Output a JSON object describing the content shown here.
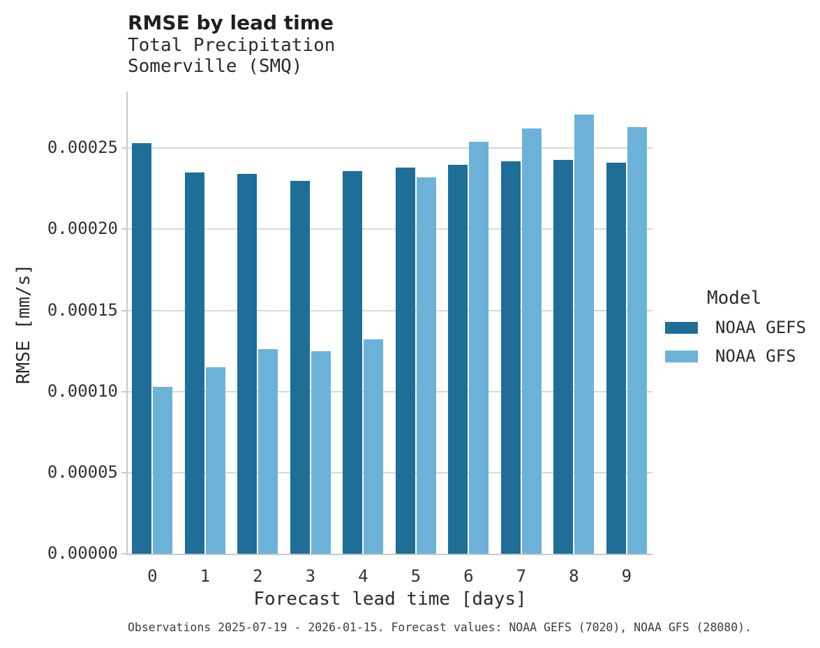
{
  "title": "RMSE by lead time",
  "subtitle": [
    "Total Precipitation",
    "Somerville (SMQ)"
  ],
  "caption": "Observations 2025-07-19 - 2026-01-15. Forecast values: NOAA GEFS (7020), NOAA GFS (28080).",
  "colors": {
    "gefs": "#1e6e98",
    "gfs": "#6cb2d8",
    "gridline": "#d9d9d9",
    "axis": "#c9c9c9",
    "text": "#2b2b2b",
    "tick_text": "#333333",
    "caption_text": "#3d3d3d"
  },
  "chart_data": {
    "type": "bar",
    "title": "RMSE by lead time",
    "subtitle": [
      "Total Precipitation",
      "Somerville (SMQ)"
    ],
    "categories": [
      "0",
      "1",
      "2",
      "3",
      "4",
      "5",
      "6",
      "7",
      "8",
      "9"
    ],
    "series": [
      {
        "name": "NOAA GEFS",
        "color": "#1e6e98",
        "values": [
          0.000253,
          0.000235,
          0.000234,
          0.00023,
          0.000236,
          0.000238,
          0.00024,
          0.000242,
          0.000243,
          0.000241
        ]
      },
      {
        "name": "NOAA GFS",
        "color": "#6cb2d8",
        "values": [
          0.000103,
          0.000115,
          0.000126,
          0.000125,
          0.000132,
          0.000232,
          0.000254,
          0.000262,
          0.000271,
          0.000263
        ]
      }
    ],
    "xlabel": "Forecast lead time [days]",
    "ylabel": "RMSE [mm/s]",
    "ylim": [
      0,
      0.000285
    ],
    "yticks": [
      0,
      5e-05,
      0.0001,
      0.00015,
      0.0002,
      0.00025
    ],
    "ytick_labels": [
      "0.00000",
      "0.00005",
      "0.00010",
      "0.00015",
      "0.00020",
      "0.00025"
    ],
    "grid": "horizontal-only",
    "legend": {
      "title": "Model",
      "position": "right",
      "entries": [
        "NOAA GEFS",
        "NOAA GFS"
      ]
    }
  }
}
